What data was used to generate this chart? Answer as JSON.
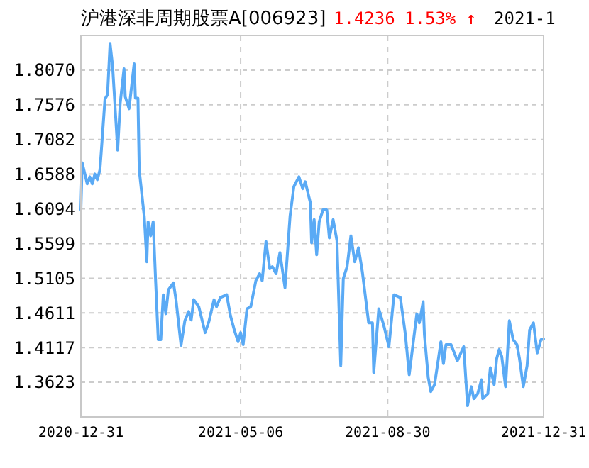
{
  "chart_data": {
    "type": "line",
    "title": "沪港深非周期股票A[006923]",
    "annotations": [
      "1.4236",
      "1.53% ↑",
      "2021-1"
    ],
    "x": [
      "2020-12-31",
      "2021-01-01",
      "2021-01-05",
      "2021-01-07",
      "2021-01-09",
      "2021-01-11",
      "2021-01-13",
      "2021-01-15",
      "2021-01-16",
      "2021-01-19",
      "2021-01-21",
      "2021-01-23",
      "2021-01-25",
      "2021-01-29",
      "2021-01-31",
      "2021-02-03",
      "2021-02-04",
      "2021-02-07",
      "2021-02-11",
      "2021-02-12",
      "2021-02-14",
      "2021-02-15",
      "2021-02-19",
      "2021-02-21",
      "2021-02-22",
      "2021-02-24",
      "2021-02-26",
      "2021-02-28",
      "2021-03-02",
      "2021-03-04",
      "2021-03-06",
      "2021-03-08",
      "2021-03-10",
      "2021-03-14",
      "2021-03-16",
      "2021-03-20",
      "2021-03-23",
      "2021-03-26",
      "2021-03-28",
      "2021-03-30",
      "2021-04-03",
      "2021-04-08",
      "2021-04-11",
      "2021-04-15",
      "2021-04-17",
      "2021-04-20",
      "2021-04-25",
      "2021-04-28",
      "2021-05-01",
      "2021-05-04",
      "2021-05-06",
      "2021-05-08",
      "2021-05-11",
      "2021-05-14",
      "2021-05-18",
      "2021-05-21",
      "2021-05-23",
      "2021-05-26",
      "2021-05-29",
      "2021-05-31",
      "2021-06-03",
      "2021-06-06",
      "2021-06-10",
      "2021-06-14",
      "2021-06-17",
      "2021-06-21",
      "2021-06-24",
      "2021-06-26",
      "2021-06-30",
      "2021-07-01",
      "2021-07-03",
      "2021-07-05",
      "2021-07-07",
      "2021-07-10",
      "2021-07-13",
      "2021-07-15",
      "2021-07-18",
      "2021-07-21",
      "2021-07-24",
      "2021-07-26",
      "2021-07-29",
      "2021-08-01",
      "2021-08-04",
      "2021-08-07",
      "2021-08-10",
      "2021-08-15",
      "2021-08-18",
      "2021-08-19",
      "2021-08-23",
      "2021-08-27",
      "2021-08-31",
      "2021-09-04",
      "2021-09-09",
      "2021-09-13",
      "2021-09-16",
      "2021-09-22",
      "2021-09-24",
      "2021-09-27",
      "2021-09-28",
      "2021-10-01",
      "2021-10-03",
      "2021-10-06",
      "2021-10-11",
      "2021-10-13",
      "2021-10-15",
      "2021-10-19",
      "2021-10-24",
      "2021-10-29",
      "2021-11-01",
      "2021-11-04",
      "2021-11-06",
      "2021-11-09",
      "2021-11-12",
      "2021-11-13",
      "2021-11-17",
      "2021-11-19",
      "2021-11-22",
      "2021-11-24",
      "2021-11-26",
      "2021-11-28",
      "2021-12-01",
      "2021-12-04",
      "2021-12-07",
      "2021-12-10",
      "2021-12-12",
      "2021-12-15",
      "2021-12-18",
      "2021-12-20",
      "2021-12-23",
      "2021-12-26",
      "2021-12-29",
      "2021-12-31"
    ],
    "series": [
      {
        "color": "#5aaaf5",
        "values": [
          1.608,
          1.675,
          1.645,
          1.655,
          1.645,
          1.659,
          1.651,
          1.665,
          1.689,
          1.766,
          1.772,
          1.845,
          1.813,
          1.693,
          1.76,
          1.809,
          1.769,
          1.752,
          1.816,
          1.767,
          1.767,
          1.665,
          1.598,
          1.534,
          1.591,
          1.571,
          1.591,
          1.504,
          1.423,
          1.423,
          1.487,
          1.46,
          1.494,
          1.504,
          1.48,
          1.415,
          1.45,
          1.463,
          1.451,
          1.48,
          1.47,
          1.433,
          1.449,
          1.48,
          1.47,
          1.483,
          1.487,
          1.457,
          1.437,
          1.42,
          1.433,
          1.416,
          1.467,
          1.47,
          1.507,
          1.517,
          1.507,
          1.563,
          1.524,
          1.527,
          1.517,
          1.547,
          1.497,
          1.599,
          1.641,
          1.655,
          1.638,
          1.648,
          1.618,
          1.561,
          1.594,
          1.544,
          1.591,
          1.608,
          1.608,
          1.568,
          1.594,
          1.564,
          1.386,
          1.51,
          1.527,
          1.571,
          1.534,
          1.554,
          1.52,
          1.447,
          1.447,
          1.376,
          1.467,
          1.443,
          1.413,
          1.487,
          1.483,
          1.43,
          1.373,
          1.46,
          1.447,
          1.477,
          1.43,
          1.369,
          1.349,
          1.359,
          1.42,
          1.389,
          1.416,
          1.416,
          1.393,
          1.413,
          1.329,
          1.356,
          1.339,
          1.346,
          1.366,
          1.339,
          1.346,
          1.383,
          1.359,
          1.396,
          1.409,
          1.399,
          1.356,
          1.45,
          1.423,
          1.416,
          1.396,
          1.356,
          1.386,
          1.437,
          1.447,
          1.404,
          1.423,
          1.424
        ]
      }
    ],
    "xlim": [
      "2020-12-31",
      "2021-12-31"
    ],
    "xticks": [
      {
        "value": "2020-12-31",
        "label": "2020-12-31"
      },
      {
        "value": "2021-05-06",
        "label": "2021-05-06"
      },
      {
        "value": "2021-08-30",
        "label": "2021-08-30"
      },
      {
        "value": "2021-12-31",
        "label": "2021-12-31"
      }
    ],
    "ylim": [
      1.3129,
      1.8564
    ],
    "yticks": [
      {
        "value": 1.3623,
        "label": "1.3623"
      },
      {
        "value": 1.4117,
        "label": "1.4117"
      },
      {
        "value": 1.4611,
        "label": "1.4611"
      },
      {
        "value": 1.5105,
        "label": "1.5105"
      },
      {
        "value": 1.5599,
        "label": "1.5599"
      },
      {
        "value": 1.6094,
        "label": "1.6094"
      },
      {
        "value": 1.6588,
        "label": "1.6588"
      },
      {
        "value": 1.7082,
        "label": "1.7082"
      },
      {
        "value": 1.7576,
        "label": "1.7576"
      },
      {
        "value": 1.807,
        "label": "1.8070"
      }
    ],
    "grid": true
  }
}
